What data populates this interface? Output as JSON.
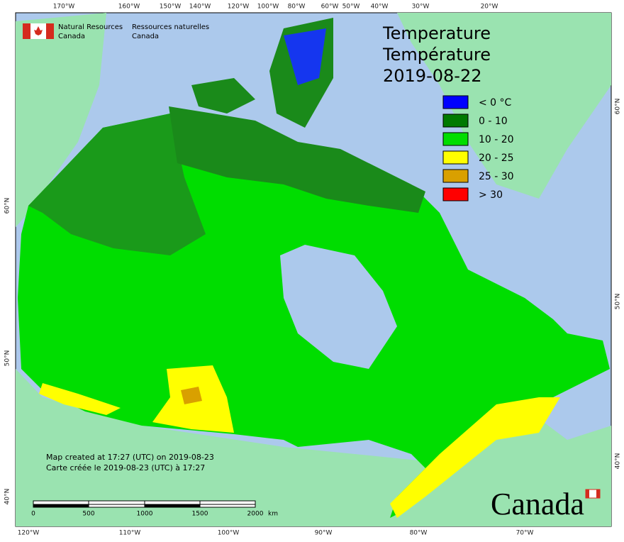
{
  "header": {
    "agency_en": [
      "Natural Resources",
      "Canada"
    ],
    "agency_fr": [
      "Ressources naturelles",
      "Canada"
    ]
  },
  "title": {
    "en": "Temperature",
    "fr": "Température",
    "date": "2019-08-22"
  },
  "legend": [
    {
      "label": "< 0 °C",
      "color": "#0000ff"
    },
    {
      "label": "0 - 10",
      "color": "#007a00"
    },
    {
      "label": "10 - 20",
      "color": "#00dd00"
    },
    {
      "label": "20 - 25",
      "color": "#ffff00"
    },
    {
      "label": "25 - 30",
      "color": "#d9a000"
    },
    {
      "label": "> 30",
      "color": "#ff0000"
    }
  ],
  "graticule": {
    "top": [
      "170°W",
      "160°W",
      "150°W",
      "140°W",
      "120°W",
      "100°W",
      "80°W",
      "60°W",
      "50°W",
      "40°W",
      "30°W",
      "20°W"
    ],
    "bottom": [
      "120°W",
      "110°W",
      "100°W",
      "90°W",
      "80°W",
      "70°W"
    ],
    "left": [
      "60°N",
      "50°N",
      "40°N"
    ],
    "right": [
      "60°N",
      "50°N",
      "40°N"
    ]
  },
  "scale_bar": {
    "labels": [
      "0",
      "500",
      "1000",
      "1500",
      "2000"
    ],
    "unit": "km"
  },
  "credits": [
    "Map created at 17:27 (UTC) on 2019-08-23",
    "Carte créée le 2019-08-23 (UTC) à 17:27"
  ],
  "wordmark": "Canada"
}
